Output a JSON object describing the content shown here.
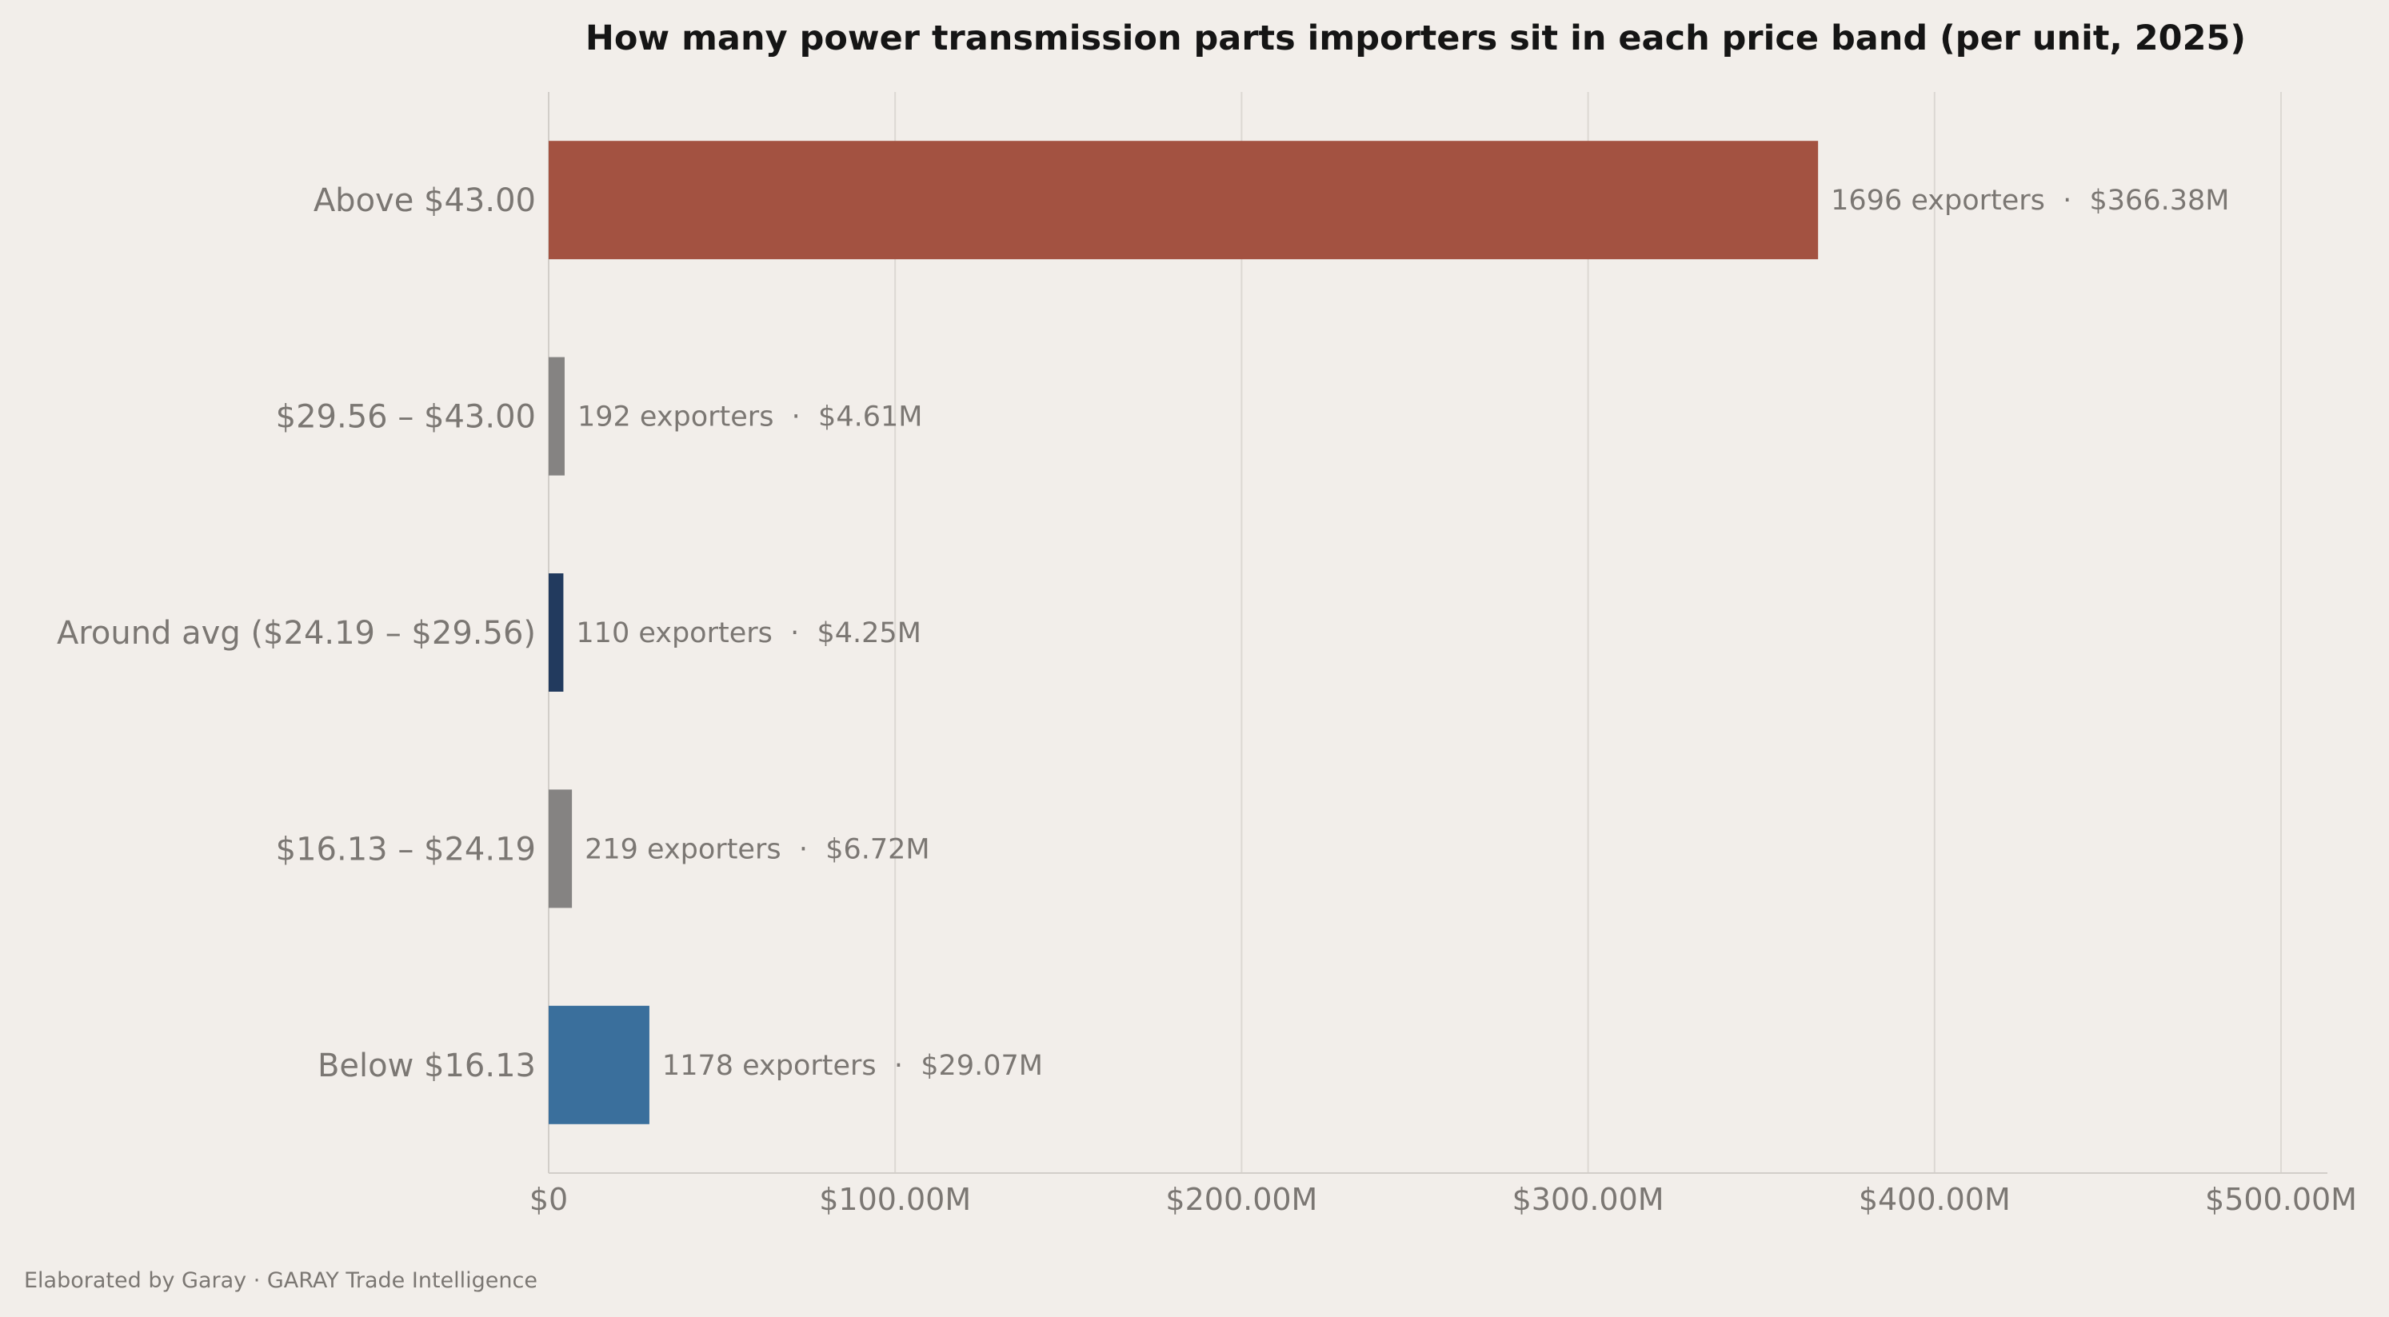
{
  "chart_data": {
    "type": "bar",
    "orientation": "horizontal",
    "title": "How many power transmission parts importers sit in each price band (per unit, 2025)",
    "categories": [
      "Above $43.00",
      "$29.56 – $43.00",
      "Around avg ($24.19 – $29.56)",
      "$16.13 – $24.19",
      "Below $16.13"
    ],
    "values": [
      366.38,
      4.61,
      4.25,
      6.72,
      29.07
    ],
    "value_unit": "$M",
    "data_labels": [
      "1696 exporters  ·  $366.38M",
      "192 exporters  ·  $4.61M",
      "110 exporters  ·  $4.25M",
      "219 exporters  ·  $6.72M",
      "1178 exporters  ·  $29.07M"
    ],
    "colors": [
      "#a35241",
      "#858382",
      "#223a5e",
      "#858382",
      "#3a6f9c"
    ],
    "xlim": [
      0,
      500
    ],
    "xticks": [
      0,
      100,
      200,
      300,
      400,
      500
    ],
    "xtick_labels": [
      "$0",
      "$100.00M",
      "$200.00M",
      "$300.00M",
      "$400.00M",
      "$500.00M"
    ],
    "grid": "vertical",
    "xlabel": "",
    "ylabel": ""
  },
  "footer": "Elaborated by Garay  ·  GARAY Trade Intelligence"
}
